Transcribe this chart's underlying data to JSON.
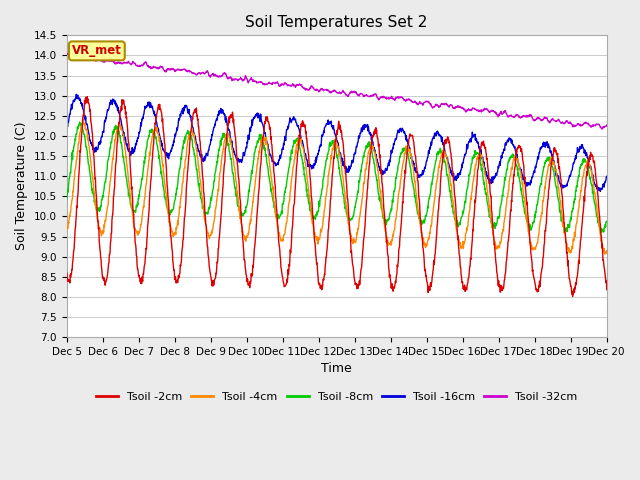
{
  "title": "Soil Temperatures Set 2",
  "xlabel": "Time",
  "ylabel": "Soil Temperature (C)",
  "ylim": [
    7.0,
    14.5
  ],
  "yticks": [
    7.0,
    7.5,
    8.0,
    8.5,
    9.0,
    9.5,
    10.0,
    10.5,
    11.0,
    11.5,
    12.0,
    12.5,
    13.0,
    13.5,
    14.0,
    14.5
  ],
  "colors": {
    "Tsoil_2cm": "#dd0000",
    "Tsoil_4cm": "#ff8800",
    "Tsoil_8cm": "#00cc00",
    "Tsoil_16cm": "#0000dd",
    "Tsoil_32cm": "#cc00cc"
  },
  "legend_labels": [
    "Tsoil -2cm",
    "Tsoil -4cm",
    "Tsoil -8cm",
    "Tsoil -16cm",
    "Tsoil -32cm"
  ],
  "annotation_text": "VR_met",
  "annotation_color": "#cc0000",
  "annotation_bg": "#ffff99",
  "annotation_border": "#aa8800",
  "background_color": "#ebebeb",
  "plot_bg": "#ffffff",
  "n_days": 15,
  "start_day": 5,
  "figwidth": 6.4,
  "figheight": 4.8,
  "dpi": 100
}
